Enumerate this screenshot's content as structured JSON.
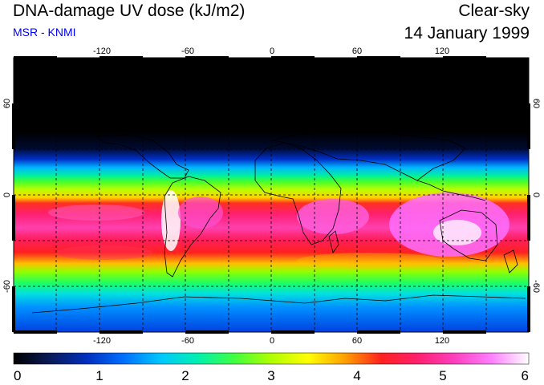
{
  "header": {
    "title": "DNA-damage UV dose (kJ/m2)",
    "source": "MSR - KNMI",
    "condition": "Clear-sky",
    "date": "14 January 1999"
  },
  "map": {
    "lon_ticks": [
      "-120",
      "-60",
      "0",
      "60",
      "120"
    ],
    "lat_ticks_left": [
      "60",
      "0",
      "-60"
    ],
    "lat_ticks_right": [
      "60",
      "0",
      "-60"
    ],
    "lon_range": [
      -180,
      180
    ],
    "lat_range": [
      -90,
      90
    ]
  },
  "colorbar": {
    "min": 0,
    "max": 6,
    "labels": [
      "0",
      "1",
      "2",
      "3",
      "4",
      "5",
      "6"
    ],
    "stops": [
      "#000000",
      "#0a1a5a",
      "#0030c0",
      "#0070ff",
      "#00c8ff",
      "#00f0b0",
      "#40ff40",
      "#b0ff00",
      "#ffff00",
      "#ffa000",
      "#ff2020",
      "#ff2070",
      "#ff40c0",
      "#ff80ff",
      "#ffffff"
    ]
  },
  "colors": {
    "title": "#000000",
    "source": "#0000ff"
  }
}
